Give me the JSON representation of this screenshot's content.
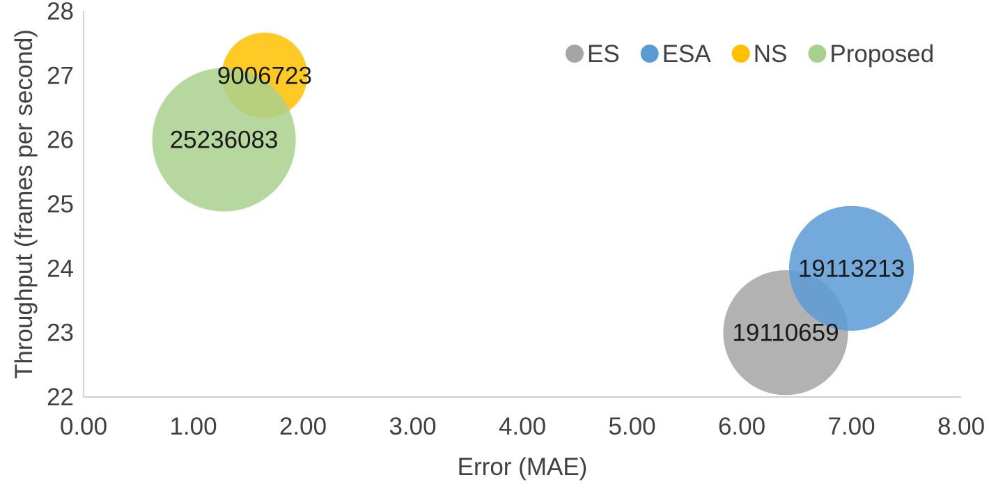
{
  "chart_data": {
    "type": "bubble",
    "title": "",
    "xlabel": "Error (MAE)",
    "ylabel": "Throughput (frames per second)",
    "xlim": [
      0,
      8
    ],
    "ylim": [
      22,
      28
    ],
    "x_ticks": [
      "0.00",
      "1.00",
      "2.00",
      "3.00",
      "4.00",
      "5.00",
      "6.00",
      "7.00",
      "8.00"
    ],
    "y_ticks": [
      "22",
      "23",
      "24",
      "25",
      "26",
      "27",
      "28"
    ],
    "grid": false,
    "legend_position": "top-right",
    "series": [
      {
        "name": "ES",
        "x": 6.4,
        "y": 23,
        "size": 19110659,
        "label": "19110659",
        "color": "#a5a5a5"
      },
      {
        "name": "ESA",
        "x": 7.0,
        "y": 24,
        "size": 19113213,
        "label": "19113213",
        "color": "#5b9bd5"
      },
      {
        "name": "NS",
        "x": 1.65,
        "y": 27,
        "size": 9006723,
        "label": "9006723",
        "color": "#ffc000"
      },
      {
        "name": "Proposed",
        "x": 1.28,
        "y": 26,
        "size": 25236083,
        "label": "25236083",
        "color": "#a9d18e"
      }
    ]
  }
}
